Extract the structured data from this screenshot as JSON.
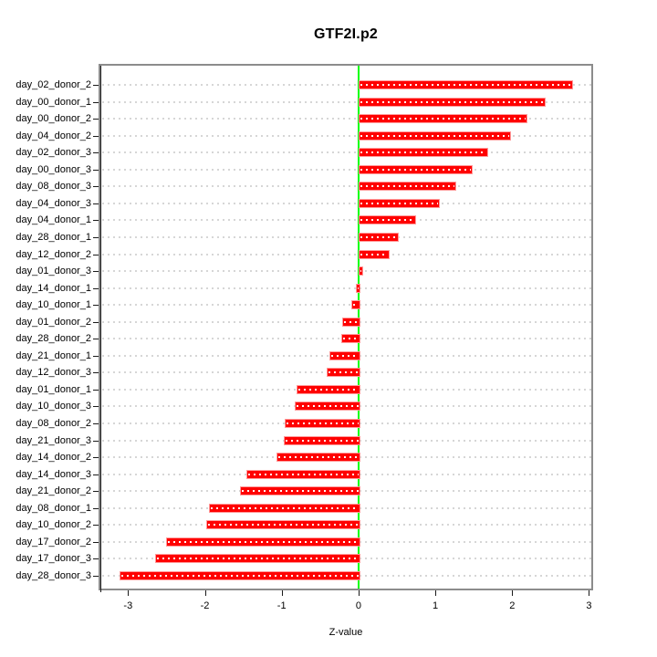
{
  "title": "GTF2I.p2",
  "chart_data": {
    "type": "bar",
    "orientation": "horizontal",
    "title": "GTF2I.p2",
    "xlabel": "Z-value",
    "ylabel": "",
    "categories": [
      "day_02_donor_2",
      "day_00_donor_1",
      "day_00_donor_2",
      "day_04_donor_2",
      "day_02_donor_3",
      "day_00_donor_3",
      "day_08_donor_3",
      "day_04_donor_3",
      "day_04_donor_1",
      "day_28_donor_1",
      "day_12_donor_2",
      "day_01_donor_3",
      "day_14_donor_1",
      "day_10_donor_1",
      "day_01_donor_2",
      "day_28_donor_2",
      "day_21_donor_1",
      "day_12_donor_3",
      "day_01_donor_1",
      "day_10_donor_3",
      "day_08_donor_2",
      "day_21_donor_3",
      "day_14_donor_2",
      "day_14_donor_3",
      "day_21_donor_2",
      "day_08_donor_1",
      "day_10_donor_2",
      "day_17_donor_2",
      "day_17_donor_3",
      "day_28_donor_3"
    ],
    "values": [
      2.77,
      2.41,
      2.18,
      1.96,
      1.67,
      1.46,
      1.25,
      1.04,
      0.73,
      0.5,
      0.38,
      0.04,
      -0.03,
      -0.09,
      -0.21,
      -0.22,
      -0.38,
      -0.41,
      -0.81,
      -0.83,
      -0.96,
      -0.97,
      -1.07,
      -1.46,
      -1.54,
      -1.95,
      -1.98,
      -2.5,
      -2.65,
      -3.11
    ],
    "xlim": [
      -3.36,
      3.03
    ],
    "xticks": [
      -3,
      -2,
      -1,
      0,
      1,
      2,
      3
    ],
    "grid": "horizontal-dotted",
    "legend": "none",
    "colors": {
      "bar_fill": "#ff0000",
      "bar_border": "#ff9b9b",
      "bar_inner_dots": "#ffffff",
      "zero_line": "#00ff00",
      "gridline": "#d6d6d6",
      "box_border": "#8c8c8c",
      "axis_line": "#1a1a1a",
      "background": "#ffffff"
    }
  }
}
